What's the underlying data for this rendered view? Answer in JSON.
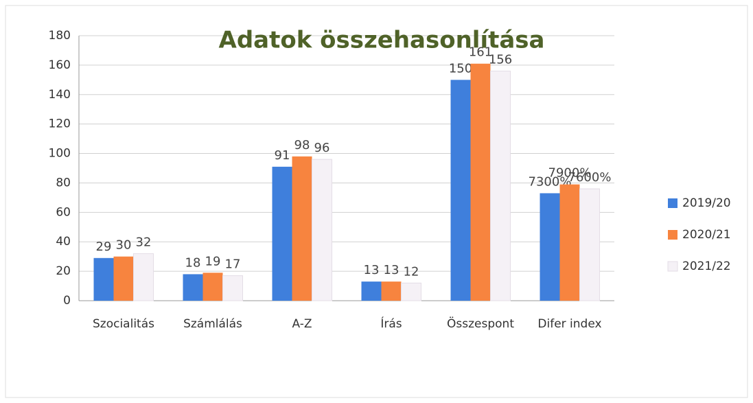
{
  "chart_data": {
    "type": "bar",
    "title": "Adatok összehasonlítása",
    "categories": [
      "Szocialitás",
      "Számlálás",
      "A-Z",
      "Írás",
      "Összespont",
      "Difer index"
    ],
    "series": [
      {
        "name": "2019/20",
        "color": "#3f7fdc",
        "values": [
          29,
          18,
          91,
          13,
          150,
          73
        ],
        "value_labels": [
          "29",
          "18",
          "91",
          "13",
          "150",
          "7300%"
        ]
      },
      {
        "name": "2020/21",
        "color": "#f7843f",
        "values": [
          30,
          19,
          98,
          13,
          161,
          79
        ],
        "value_labels": [
          "30",
          "19",
          "98",
          "13",
          "161",
          "7900%"
        ]
      },
      {
        "name": "2021/22",
        "color": "#f5f1f6",
        "values": [
          32,
          17,
          96,
          12,
          156,
          76
        ],
        "value_labels": [
          "32",
          "17",
          "96",
          "12",
          "156",
          "7600%"
        ]
      }
    ],
    "ylim": [
      0,
      180
    ],
    "yticks": [
      0,
      20,
      40,
      60,
      80,
      100,
      120,
      140,
      160,
      180
    ],
    "grid": true,
    "legend": "right"
  }
}
